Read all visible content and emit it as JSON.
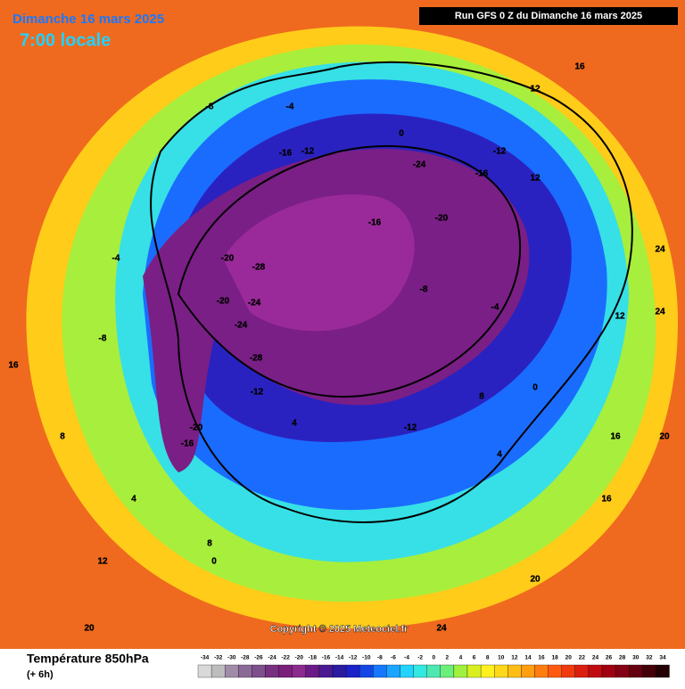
{
  "header": {
    "date": "Dimanche 16 mars 2025",
    "time": "7:00 locale",
    "run": "Run GFS 0 Z du Dimanche 16 mars 2025"
  },
  "copyright": "Copyright © 2025 Meteociel.fr",
  "legend": {
    "title": "Température 850hPa",
    "subtitle": "(+ 6h)",
    "ticks": [
      -34,
      -32,
      -30,
      -28,
      -26,
      -24,
      -22,
      -20,
      -18,
      -16,
      -14,
      -12,
      -10,
      -8,
      -6,
      -4,
      -2,
      0,
      2,
      4,
      6,
      8,
      10,
      12,
      14,
      16,
      18,
      20,
      22,
      24,
      26,
      28,
      30,
      32,
      34
    ],
    "colors": [
      "#d9d9d9",
      "#bdbdbd",
      "#a08ca8",
      "#8a6a96",
      "#7d4f8c",
      "#76307f",
      "#7a1f7a",
      "#8b2a8f",
      "#6a1a86",
      "#4a1a90",
      "#2a1ba0",
      "#1a22c8",
      "#1446e6",
      "#1677ff",
      "#1aa5ff",
      "#22d2ff",
      "#32e8e0",
      "#4de8b0",
      "#6cee7a",
      "#a0f040",
      "#d8f020",
      "#fff020",
      "#ffd81a",
      "#ffbe14",
      "#ff9e10",
      "#ff7c10",
      "#ff5a10",
      "#f03a10",
      "#dc1e10",
      "#c00c10",
      "#a00010",
      "#840014",
      "#640010",
      "#440008",
      "#240004"
    ]
  },
  "contour_labels": [
    "-20",
    "-24",
    "-28",
    "-16",
    "-12",
    "-8",
    "-4",
    "0",
    "4",
    "8",
    "12",
    "16",
    "20",
    "24",
    "-24",
    "-20",
    "-16",
    "-12",
    "-8",
    "-4",
    "0",
    "4",
    "8",
    "12",
    "16",
    "20",
    "24",
    "-28",
    "-24",
    "-20",
    "-16",
    "-12",
    "-8",
    "-4",
    "0",
    "4",
    "8",
    "12",
    "16",
    "20",
    "24",
    "-20",
    "-16",
    "-12",
    "12",
    "16"
  ]
}
